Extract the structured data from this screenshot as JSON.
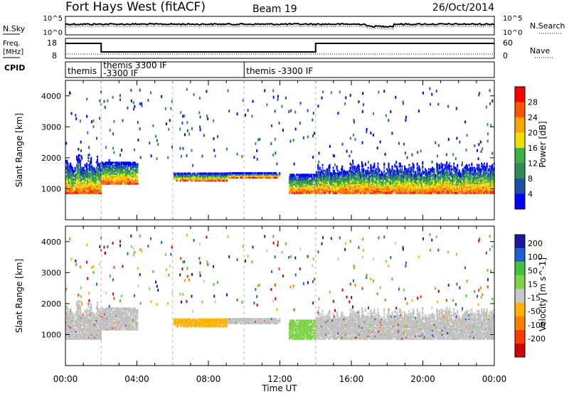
{
  "header": {
    "station": "Fort Hays West (fitACF)",
    "beam": "Beam 19",
    "date": "26/Oct/2014"
  },
  "noise_panel": {
    "left_label": "N.Sky",
    "left_ticks": [
      "10^5",
      "10^0"
    ],
    "right_label": "N.Search",
    "right_ticks": [
      "10^5",
      "10^0"
    ]
  },
  "freq_panel": {
    "left_label_1": "Freq.",
    "left_label_2": "[MHz]",
    "left_ticks": [
      "18",
      "8"
    ],
    "right_label": "Nave",
    "right_ticks": [
      "60",
      "0"
    ]
  },
  "cpid_panel": {
    "label": "CPID",
    "segments": [
      {
        "start_h": 0.0,
        "end_h": 2.0,
        "lines": [
          "themis"
        ]
      },
      {
        "start_h": 2.0,
        "end_h": 10.0,
        "lines": [
          "themis 3300 IF",
          "-3300 IF"
        ]
      },
      {
        "start_h": 10.0,
        "end_h": 24.0,
        "lines": [
          "themis -3300 IF"
        ]
      }
    ]
  },
  "colors": {
    "power": [
      "#0000ff",
      "#1c4fa8",
      "#2e8b57",
      "#3cb043",
      "#f0e000",
      "#ffa500",
      "#ff5500",
      "#ff0000"
    ],
    "velocity": [
      "#1a1aa0",
      "#1f5fd0",
      "#41c43a",
      "#7ed348",
      "#c8c8c8",
      "#ffb000",
      "#ff7f00",
      "#ff3c00",
      "#d00000"
    ],
    "ground_scatter": "#c0c0c0"
  },
  "chart_data": [
    {
      "type": "heatmap",
      "name": "power",
      "ylabel": "Slant Range [km]",
      "ylim": [
        0,
        4500
      ],
      "yticks": [
        1000,
        2000,
        3000,
        4000
      ],
      "xlim": [
        0,
        24
      ],
      "colorbar": {
        "label": "Power [dB]",
        "ticks": [
          "4",
          "8",
          "12",
          "16",
          "20",
          "24",
          "28"
        ],
        "range": [
          0,
          30
        ]
      }
    },
    {
      "type": "heatmap",
      "name": "velocity",
      "ylabel": "Slant Range [km]",
      "ylim": [
        0,
        4500
      ],
      "yticks": [
        1000,
        2000,
        3000,
        4000
      ],
      "xlim": [
        0,
        24
      ],
      "colorbar": {
        "label": "Velocity [m s^-1]",
        "ticks": [
          "200",
          "100",
          "50",
          "15",
          "-15",
          "-50",
          "-100",
          "-200"
        ]
      }
    }
  ],
  "xaxis": {
    "label": "Time UT",
    "ticks": [
      {
        "h": 0,
        "label": "00:00"
      },
      {
        "h": 4,
        "label": "04:00"
      },
      {
        "h": 8,
        "label": "08:00"
      },
      {
        "h": 12,
        "label": "12:00"
      },
      {
        "h": 16,
        "label": "16:00"
      },
      {
        "h": 20,
        "label": "20:00"
      },
      {
        "h": 24,
        "label": "00:00"
      }
    ]
  }
}
